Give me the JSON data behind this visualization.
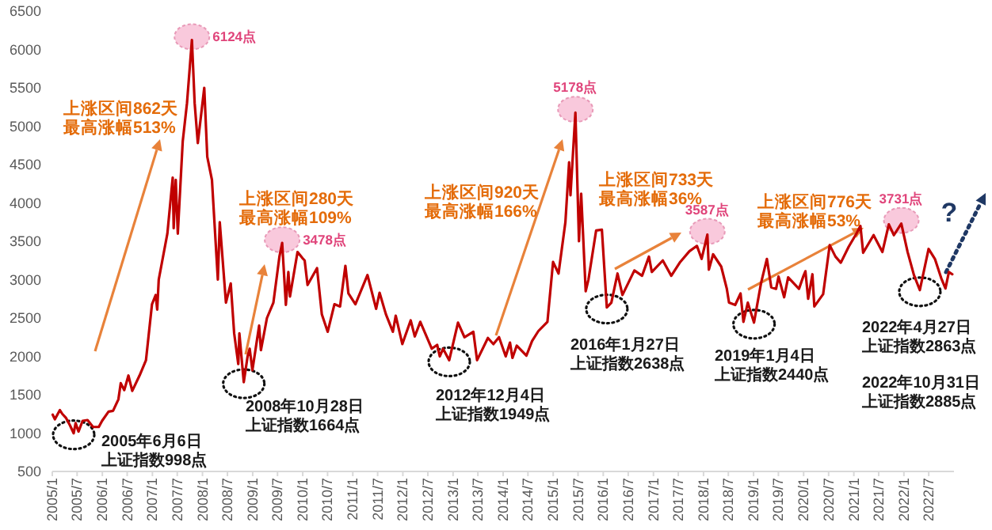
{
  "chart_data": {
    "type": "line",
    "series": [
      {
        "color": "#c00000",
        "x": [
          "2005-01-04",
          "2005-01-20",
          "2005-02-25",
          "2005-03-15",
          "2005-04-10",
          "2005-05-10",
          "2005-06-06",
          "2005-06-20",
          "2005-07-11",
          "2005-08-10",
          "2005-09-15",
          "2005-10-25",
          "2005-12-06",
          "2005-12-30",
          "2006-02-15",
          "2006-03-20",
          "2006-04-28",
          "2006-05-15",
          "2006-06-10",
          "2006-07-10",
          "2006-08-07",
          "2006-09-29",
          "2006-11-15",
          "2006-12-29",
          "2007-01-25",
          "2007-02-05",
          "2007-02-16",
          "2007-04-20",
          "2007-05-29",
          "2007-06-05",
          "2007-06-20",
          "2007-07-05",
          "2007-08-10",
          "2007-09-10",
          "2007-10-16",
          "2007-11-05",
          "2007-11-28",
          "2008-01-14",
          "2008-02-05",
          "2008-03-10",
          "2008-04-22",
          "2008-05-06",
          "2008-06-20",
          "2008-07-25",
          "2008-08-19",
          "2008-09-18",
          "2008-09-26",
          "2008-10-28",
          "2008-11-25",
          "2008-12-10",
          "2008-12-30",
          "2009-02-17",
          "2009-03-02",
          "2009-04-15",
          "2009-06-01",
          "2009-07-15",
          "2009-08-04",
          "2009-08-31",
          "2009-09-18",
          "2009-09-30",
          "2009-11-24",
          "2009-12-30",
          "2010-01-15",
          "2010-02-05",
          "2010-04-15",
          "2010-05-20",
          "2010-07-02",
          "2010-08-20",
          "2010-09-30",
          "2010-11-08",
          "2010-11-30",
          "2011-01-20",
          "2011-04-18",
          "2011-06-20",
          "2011-07-15",
          "2011-08-30",
          "2011-10-20",
          "2011-11-10",
          "2011-12-28",
          "2012-02-27",
          "2012-03-28",
          "2012-05-07",
          "2012-07-30",
          "2012-09-07",
          "2012-09-26",
          "2012-10-20",
          "2012-12-04",
          "2013-02-06",
          "2013-03-25",
          "2013-05-29",
          "2013-06-25",
          "2013-09-12",
          "2013-10-22",
          "2013-12-02",
          "2014-01-20",
          "2014-02-20",
          "2014-03-10",
          "2014-04-10",
          "2014-06-20",
          "2014-07-31",
          "2014-09-15",
          "2014-11-20",
          "2014-12-31",
          "2015-02-09",
          "2015-03-31",
          "2015-04-27",
          "2015-05-07",
          "2015-06-12",
          "2015-07-08",
          "2015-07-24",
          "2015-08-26",
          "2015-09-15",
          "2015-11-10",
          "2015-12-22",
          "2016-01-27",
          "2016-02-29",
          "2016-04-14",
          "2016-05-20",
          "2016-08-15",
          "2016-10-10",
          "2016-11-29",
          "2016-12-20",
          "2017-03-10",
          "2017-05-11",
          "2017-07-15",
          "2017-09-20",
          "2017-11-14",
          "2017-12-18",
          "2018-01-29",
          "2018-02-09",
          "2018-03-12",
          "2018-05-10",
          "2018-06-20",
          "2018-07-06",
          "2018-08-20",
          "2018-09-28",
          "2018-10-19",
          "2018-11-20",
          "2019-01-04",
          "2019-02-25",
          "2019-04-08",
          "2019-05-10",
          "2019-06-14",
          "2019-07-02",
          "2019-08-12",
          "2019-09-10",
          "2019-11-28",
          "2019-12-31",
          "2020-01-14",
          "2020-02-03",
          "2020-03-05",
          "2020-03-19",
          "2020-05-22",
          "2020-07-09",
          "2020-08-20",
          "2020-09-28",
          "2020-11-25",
          "2021-01-20",
          "2021-02-18",
          "2021-03-10",
          "2021-05-25",
          "2021-07-28",
          "2021-09-13",
          "2021-10-20",
          "2021-12-13",
          "2022-01-28",
          "2022-03-15",
          "2022-04-27",
          "2022-06-30",
          "2022-08-15",
          "2022-09-30",
          "2022-10-31",
          "2022-11-25",
          "2022-12-20"
        ],
        "values": [
          1240,
          1180,
          1300,
          1250,
          1200,
          1100,
          998,
          1130,
          1020,
          1160,
          1170,
          1080,
          1080,
          1160,
          1280,
          1290,
          1440,
          1650,
          1560,
          1750,
          1550,
          1750,
          1950,
          2680,
          2800,
          2610,
          3000,
          3600,
          4330,
          3670,
          4300,
          3600,
          4800,
          5300,
          6124,
          5300,
          4780,
          5500,
          4600,
          4300,
          3000,
          3750,
          2700,
          2950,
          2300,
          1900,
          2300,
          1664,
          2000,
          2100,
          1820,
          2400,
          2080,
          2500,
          2700,
          3300,
          3478,
          2670,
          3100,
          2780,
          3360,
          3280,
          3250,
          2930,
          3150,
          2550,
          2320,
          2680,
          2650,
          3180,
          2820,
          2680,
          3060,
          2620,
          2830,
          2550,
          2320,
          2530,
          2160,
          2470,
          2260,
          2450,
          2100,
          2150,
          2000,
          2100,
          1949,
          2440,
          2250,
          2320,
          1950,
          2240,
          2160,
          2250,
          2000,
          2180,
          1980,
          2140,
          2010,
          2200,
          2330,
          2450,
          3230,
          3080,
          3750,
          4530,
          4100,
          5178,
          3500,
          4120,
          2850,
          3000,
          3640,
          3650,
          2638,
          2700,
          3080,
          2800,
          3120,
          3050,
          3300,
          3100,
          3250,
          3050,
          3230,
          3370,
          3440,
          3270,
          3587,
          3130,
          3330,
          3170,
          2880,
          2700,
          2670,
          2820,
          2450,
          2700,
          2440,
          2960,
          3270,
          2900,
          2880,
          3040,
          2770,
          3030,
          2880,
          3050,
          3110,
          2750,
          3070,
          2650,
          2810,
          3450,
          3300,
          3220,
          3430,
          3600,
          3700,
          3350,
          3580,
          3360,
          3720,
          3580,
          3731,
          3360,
          3060,
          2863,
          3400,
          3270,
          3020,
          2885,
          3100,
          3070
        ]
      }
    ],
    "xlim": [
      "2005-01-01",
      "2023-01-01"
    ],
    "xticks": [
      {
        "value": "2005-01",
        "label": "2005/1"
      },
      {
        "value": "2005-07",
        "label": "2005/7"
      },
      {
        "value": "2006-01",
        "label": "2006/1"
      },
      {
        "value": "2006-07",
        "label": "2006/7"
      },
      {
        "value": "2007-01",
        "label": "2007/1"
      },
      {
        "value": "2007-07",
        "label": "2007/7"
      },
      {
        "value": "2008-01",
        "label": "2008/1"
      },
      {
        "value": "2008-07",
        "label": "2008/7"
      },
      {
        "value": "2009-01",
        "label": "2009/1"
      },
      {
        "value": "2009-07",
        "label": "2009/7"
      },
      {
        "value": "2010-01",
        "label": "2010/1"
      },
      {
        "value": "2010-07",
        "label": "2010/7"
      },
      {
        "value": "2011-01",
        "label": "2011/1"
      },
      {
        "value": "2011-07",
        "label": "2011/7"
      },
      {
        "value": "2012-01",
        "label": "2012/1"
      },
      {
        "value": "2012-07",
        "label": "2012/7"
      },
      {
        "value": "2013-01",
        "label": "2013/1"
      },
      {
        "value": "2013-07",
        "label": "2013/7"
      },
      {
        "value": "2014-01",
        "label": "2014/1"
      },
      {
        "value": "2014-07",
        "label": "2014/7"
      },
      {
        "value": "2015-01",
        "label": "2015/1"
      },
      {
        "value": "2015-07",
        "label": "2015/7"
      },
      {
        "value": "2016-01",
        "label": "2016/1"
      },
      {
        "value": "2016-07",
        "label": "2016/7"
      },
      {
        "value": "2017-01",
        "label": "2017/1"
      },
      {
        "value": "2017-07",
        "label": "2017/7"
      },
      {
        "value": "2018-01",
        "label": "2018/1"
      },
      {
        "value": "2018-07",
        "label": "2018/7"
      },
      {
        "value": "2019-01",
        "label": "2019/1"
      },
      {
        "value": "2019-07",
        "label": "2019/7"
      },
      {
        "value": "2020-01",
        "label": "2020/1"
      },
      {
        "value": "2020-07",
        "label": "2020/7"
      },
      {
        "value": "2021-01",
        "label": "2021/1"
      },
      {
        "value": "2021-07",
        "label": "2021/7"
      },
      {
        "value": "2022-01",
        "label": "2022/1"
      },
      {
        "value": "2022-07",
        "label": "2022/7"
      }
    ],
    "ylim": [
      500,
      6500
    ],
    "yticks": [
      500,
      1000,
      1500,
      2000,
      2500,
      3000,
      3500,
      4000,
      4500,
      5000,
      5500,
      6000,
      6500
    ],
    "grid": false,
    "annotations": [
      "上涨区间862天",
      "最高涨幅513%",
      {
        "text": "6124点",
        "x": "2007-10-16",
        "y": 6124
      },
      {
        "text": "2005年6月6日",
        "x": "2005-06-06",
        "y": 998
      },
      "上证指数998点",
      "上涨区间280天",
      "最高涨幅109%",
      {
        "text": "3478点",
        "x": "2009-08-04",
        "y": 3478
      },
      {
        "text": "2008年10月28日",
        "x": "2008-10-28",
        "y": 1664
      },
      "上证指数1664点",
      "上涨区间920天",
      "最高涨幅166%",
      {
        "text": "5178点",
        "x": "2015-06-12",
        "y": 5178
      },
      {
        "text": "2012年12月4日",
        "x": "2012-12-04",
        "y": 1949
      },
      "上证指数1949点",
      "上涨区间733天",
      "最高涨幅36%",
      {
        "text": "3587点",
        "x": "2018-01-29",
        "y": 3587
      },
      {
        "text": "2016年1月27日",
        "x": "2016-01-27",
        "y": 2638
      },
      "上证指数2638点",
      "上涨区间776天",
      "最高涨幅53%",
      {
        "text": "3731点",
        "x": "2021-12-13",
        "y": 3731
      },
      {
        "text": "2019年1月4日",
        "x": "2019-01-04",
        "y": 2440
      },
      "上证指数2440点",
      {
        "text": "2022年4月27日",
        "x": "2022-04-27",
        "y": 2863
      },
      "上证指数2863点",
      "2022年10月31日",
      "上证指数2885点",
      "?"
    ]
  }
}
